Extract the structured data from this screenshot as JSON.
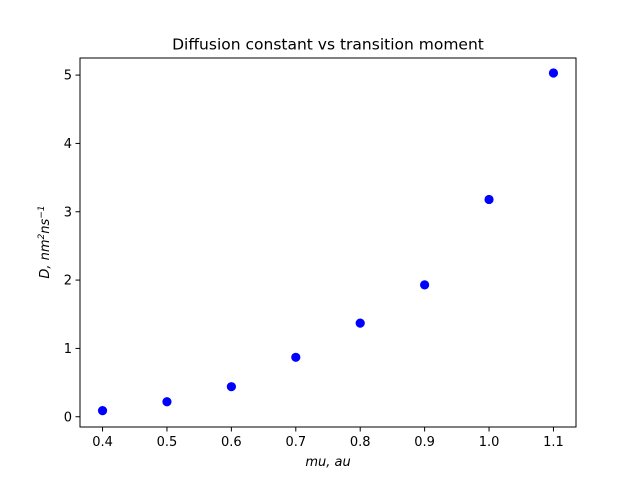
{
  "chart_data": {
    "type": "scatter",
    "title": "Diffusion constant vs transition moment",
    "xlabel": "mu, au",
    "ylabel": "D, nm²ns⁻¹",
    "ylabel_parts": {
      "pre": "D, nm",
      "sup1": "2",
      "mid": "ns",
      "sup2": "−1"
    },
    "xlim": [
      0.365,
      1.135
    ],
    "ylim": [
      -0.15,
      5.25
    ],
    "x_ticks": [
      0.4,
      0.5,
      0.6,
      0.7,
      0.8,
      0.9,
      1.0,
      1.1
    ],
    "x_tick_labels": [
      "0.4",
      "0.5",
      "0.6",
      "0.7",
      "0.8",
      "0.9",
      "1.0",
      "1.1"
    ],
    "y_ticks": [
      0,
      1,
      2,
      3,
      4,
      5
    ],
    "y_tick_labels": [
      "0",
      "1",
      "2",
      "3",
      "4",
      "5"
    ],
    "grid": false,
    "legend": false,
    "marker_color": "#0000ff",
    "series": [
      {
        "x": [
          0.4,
          0.5,
          0.6,
          0.7,
          0.8,
          0.9,
          1.0,
          1.1
        ],
        "y": [
          0.09,
          0.22,
          0.44,
          0.87,
          1.37,
          1.93,
          3.18,
          5.03
        ]
      }
    ]
  }
}
